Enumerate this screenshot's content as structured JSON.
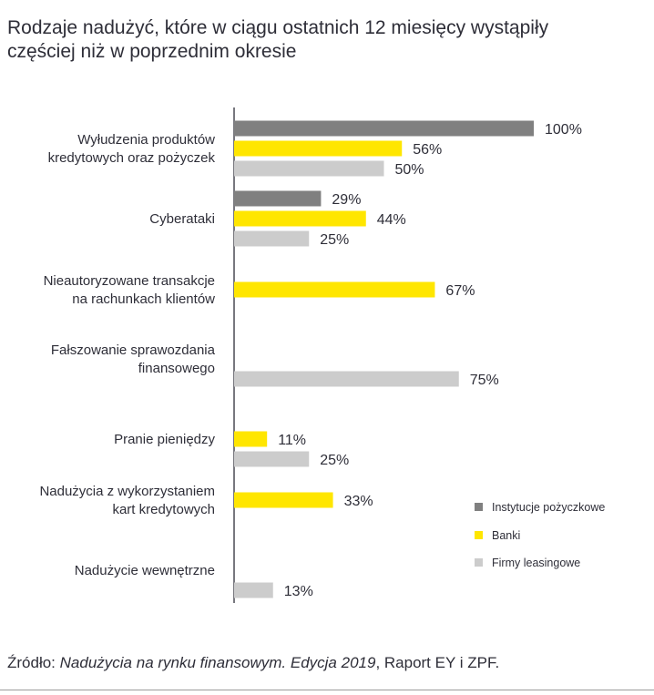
{
  "title_line1": "Rodzaje nadużyć, które w ciągu ostatnich 12 miesięcy wystąpiły",
  "title_line2": "częściej niż w poprzednim okresie",
  "source": {
    "prefix": "Źródło: ",
    "italic": "Nadużycia na rynku finansowym. Edycja 2019",
    "suffix": ", Raport EY i ZPF."
  },
  "colors": {
    "instytucje": "#808080",
    "banki": "#ffe600",
    "firmy": "#cccccc",
    "text": "#2e2e38",
    "axis": "#2e2e38"
  },
  "chart_data": {
    "type": "bar",
    "orientation": "horizontal",
    "xlim": [
      0,
      100
    ],
    "value_suffix": "%",
    "legend_position": "right",
    "categories": [
      [
        "Wyłudzenia produktów",
        "kredytowych oraz pożyczek"
      ],
      [
        "Cyberataki"
      ],
      [
        "Nieautoryzowane transakcje",
        "na rachunkach klientów"
      ],
      [
        "Fałszowanie sprawozdania",
        "finansowego"
      ],
      [
        "Pranie pieniędzy"
      ],
      [
        "Nadużycia z wykorzystaniem",
        "kart kredytowych"
      ],
      [
        "Nadużycie wewnętrzne"
      ]
    ],
    "series": [
      {
        "name": "Instytucje pożyczkowe",
        "color": "#808080",
        "values": [
          100,
          29,
          null,
          null,
          null,
          null,
          null
        ]
      },
      {
        "name": "Banki",
        "color": "#ffe600",
        "values": [
          56,
          44,
          67,
          null,
          11,
          33,
          null
        ]
      },
      {
        "name": "Firmy leasingowe",
        "color": "#cccccc",
        "values": [
          50,
          25,
          null,
          75,
          25,
          null,
          13
        ]
      }
    ]
  }
}
